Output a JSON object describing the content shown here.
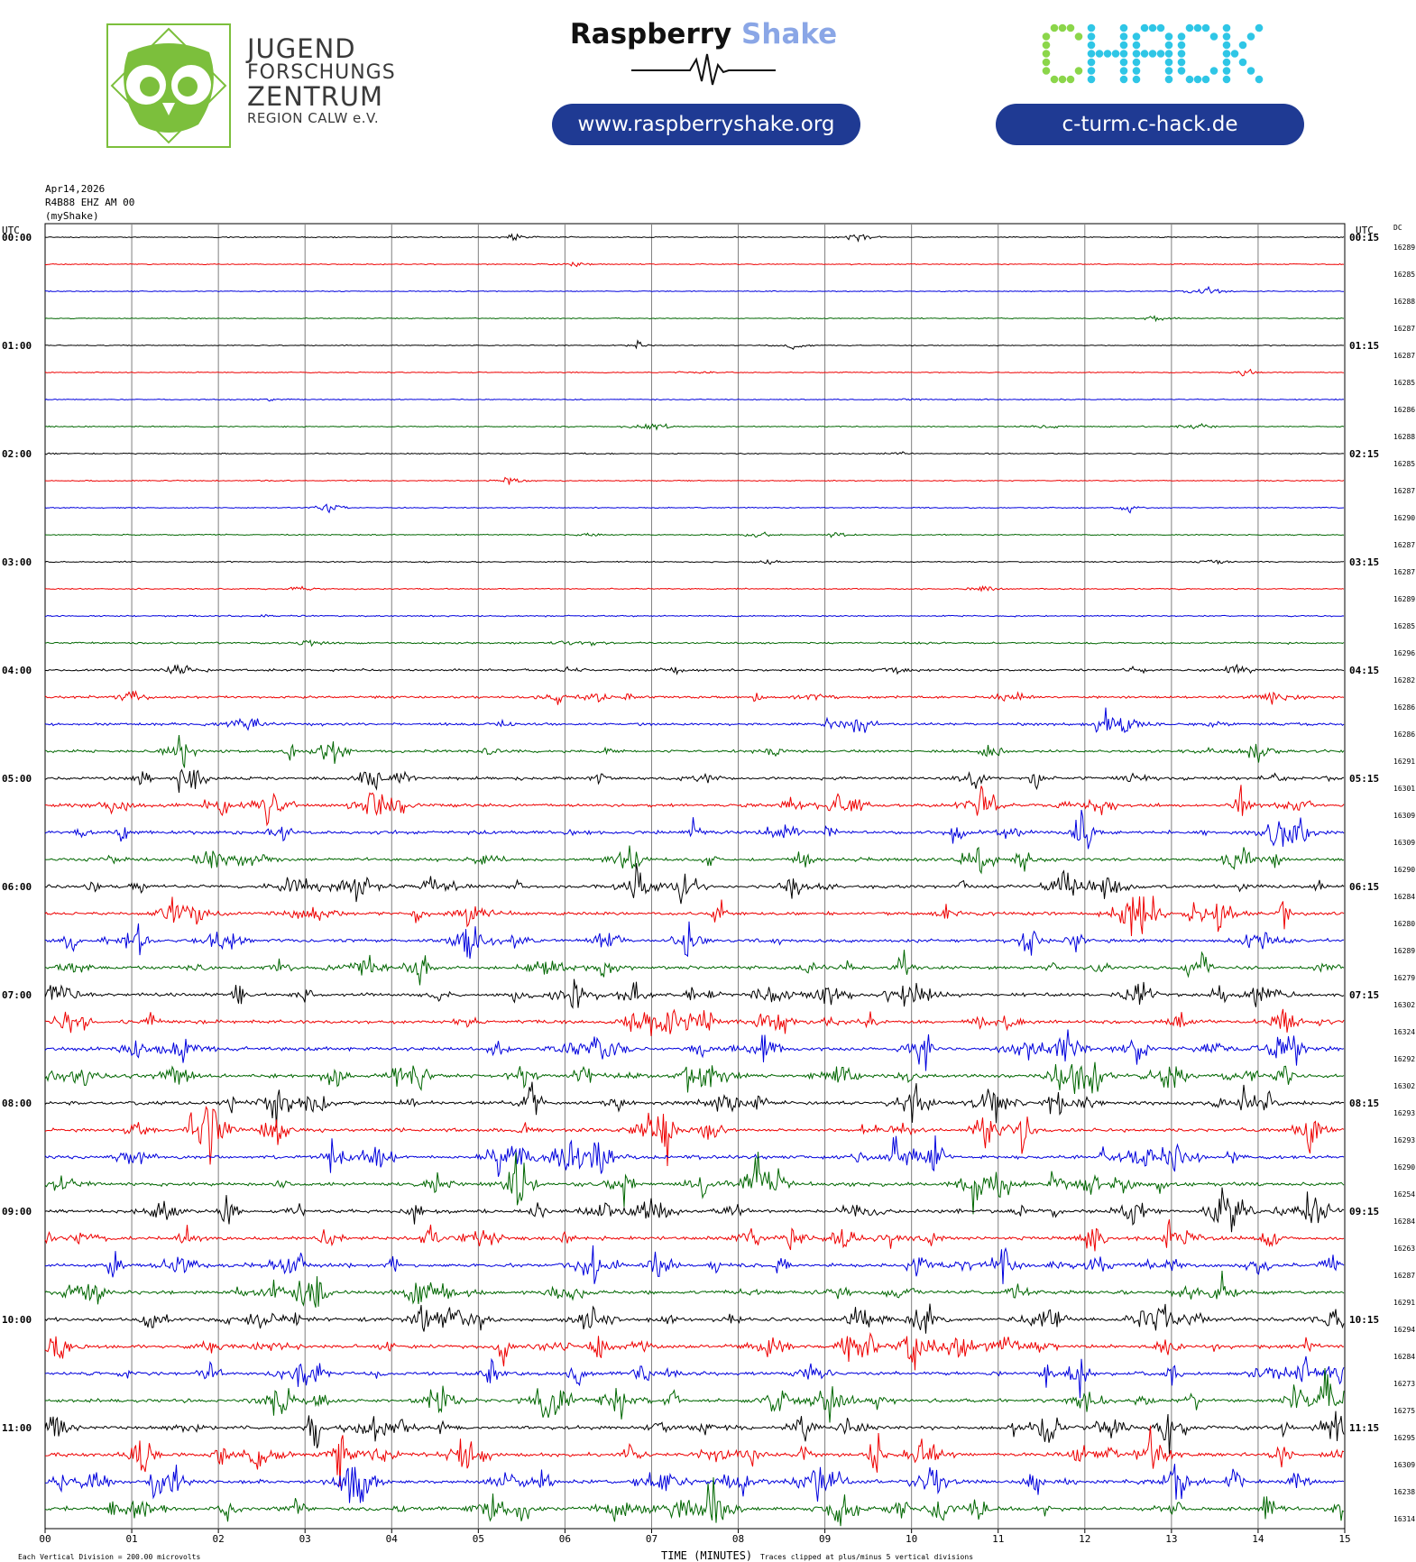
{
  "header": {
    "jfz_lines": [
      "JUGEND",
      "FORSCHUNGS",
      "ZENTRUM",
      "REGION CALW e.V."
    ],
    "rs_title_a": "Raspberry",
    "rs_title_b": "Shake",
    "rs_url": "www.raspberryshake.org",
    "chack_logo": "CHACK",
    "chack_url": "c-turm.c-hack.de",
    "colors": {
      "jfz_green": "#7cbf3c",
      "pill_blue": "#1f3a93",
      "chack_green": "#8bd64a",
      "chack_cyan": "#2fc6e6",
      "shake_blue": "#8aa6e6"
    }
  },
  "meta": {
    "date": "Apr14,2026",
    "station": "R4B88 EHZ AM 00",
    "source": "(myShake)"
  },
  "chart_data": {
    "type": "line",
    "left_axis_title": "UTC",
    "right_axis_title": "UTC",
    "dc_title": "DC",
    "xlabel": "TIME (MINUTES)",
    "x_ticks": [
      "00",
      "01",
      "02",
      "03",
      "04",
      "05",
      "06",
      "07",
      "08",
      "09",
      "10",
      "11",
      "12",
      "13",
      "14",
      "15"
    ],
    "xlim": [
      0,
      15
    ],
    "left_labels": [
      "00:00",
      "01:00",
      "02:00",
      "03:00",
      "04:00",
      "05:00",
      "06:00",
      "07:00",
      "08:00",
      "09:00",
      "10:00",
      "11:00"
    ],
    "right_labels": [
      "00:15",
      "01:15",
      "02:15",
      "03:15",
      "04:15",
      "05:15",
      "06:15",
      "07:15",
      "08:15",
      "09:15",
      "10:15",
      "11:15"
    ],
    "trace_colors": [
      "#000000",
      "#ee0000",
      "#0000dd",
      "#006600"
    ],
    "dc_offsets": [
      16289,
      16285,
      16288,
      16287,
      16287,
      16285,
      16286,
      16288,
      16285,
      16287,
      16290,
      16287,
      16287,
      16289,
      16285,
      16296,
      16282,
      16286,
      16286,
      16291,
      16301,
      16309,
      16309,
      16290,
      16284,
      16280,
      16289,
      16279,
      16302,
      16324,
      16292,
      16302,
      16293,
      16293,
      16290,
      16254,
      16284,
      16263,
      16287,
      16291,
      16294,
      16284,
      16273,
      16275,
      16295,
      16309,
      16238,
      16314
    ],
    "activity": [
      0.15,
      0.15,
      0.12,
      0.12,
      0.12,
      0.15,
      0.18,
      0.2,
      0.18,
      0.15,
      0.18,
      0.2,
      0.2,
      0.22,
      0.3,
      0.45,
      0.65,
      0.75,
      0.8,
      0.85,
      0.95,
      1.1,
      1.1,
      1.05,
      1.1,
      1.1,
      1.1,
      1.1,
      1.15,
      1.2,
      1.2,
      1.2,
      1.2,
      1.2,
      1.2,
      1.2,
      1.2,
      1.2,
      1.2,
      1.2,
      1.2,
      1.2,
      1.2,
      1.2,
      1.25,
      1.3,
      1.3,
      1.3
    ],
    "footer_scale": "Each Vertical Division =  200.00 microvolts",
    "footer_clip": "Traces clipped at plus/minus 5 vertical divisions"
  }
}
